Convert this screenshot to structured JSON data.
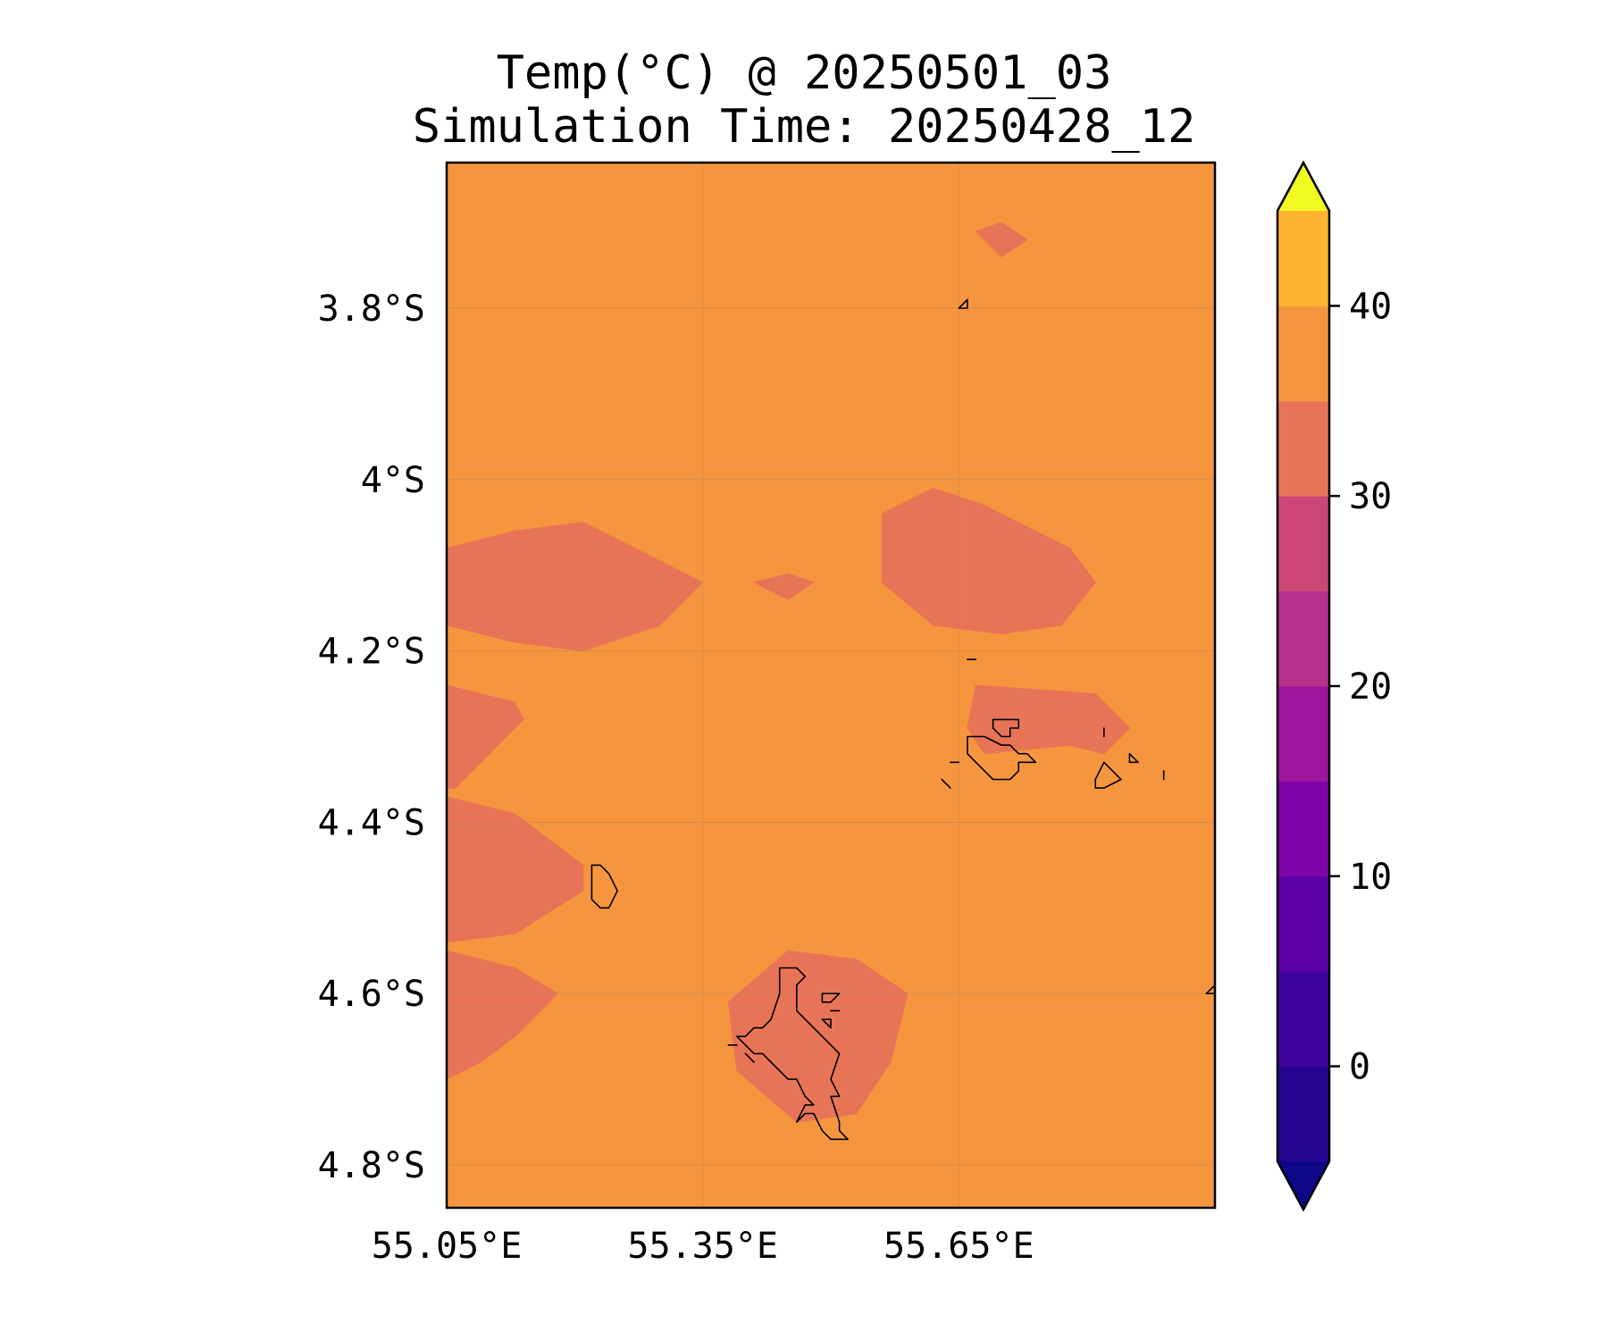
{
  "title": "Temp(°C) @ 20250501_03",
  "subtitle": "Simulation Time: 20250428_12",
  "map": {
    "variable": "Temp(°C)",
    "extent": {
      "lon_min": 55.05,
      "lon_max": 55.95,
      "lat_min": -4.85,
      "lat_max": -3.63
    },
    "background_color": "#f5963f",
    "x_ticks": [
      {
        "value": 55.05,
        "label": "55.05°E"
      },
      {
        "value": 55.35,
        "label": "55.35°E"
      },
      {
        "value": 55.65,
        "label": "55.65°E"
      }
    ],
    "y_ticks": [
      {
        "value": -3.8,
        "label": "3.8°S"
      },
      {
        "value": -4.0,
        "label": "4°S"
      },
      {
        "value": -4.2,
        "label": "4.2°S"
      },
      {
        "value": -4.4,
        "label": "4.4°S"
      },
      {
        "value": -4.6,
        "label": "4.6°S"
      },
      {
        "value": -4.8,
        "label": "4.8°S"
      }
    ],
    "gridlines": true,
    "contour_regions": [
      {
        "name": "25-30 band north",
        "band": [
          25,
          30
        ],
        "color": "#e87458",
        "lonlat": [
          [
            55.67,
            -3.71
          ],
          [
            55.7,
            -3.7
          ],
          [
            55.73,
            -3.72
          ],
          [
            55.7,
            -3.74
          ]
        ]
      },
      {
        "name": "25-30 band west-central",
        "band": [
          25,
          30
        ],
        "color": "#e87458",
        "lonlat": [
          [
            55.05,
            -4.08
          ],
          [
            55.13,
            -4.06
          ],
          [
            55.21,
            -4.05
          ],
          [
            55.35,
            -4.12
          ],
          [
            55.3,
            -4.17
          ],
          [
            55.21,
            -4.2
          ],
          [
            55.13,
            -4.19
          ],
          [
            55.05,
            -4.17
          ]
        ]
      },
      {
        "name": "25-30 band small",
        "band": [
          25,
          30
        ],
        "color": "#e87458",
        "lonlat": [
          [
            55.41,
            -4.12
          ],
          [
            55.45,
            -4.11
          ],
          [
            55.48,
            -4.12
          ],
          [
            55.45,
            -4.14
          ]
        ]
      },
      {
        "name": "25-30 band east-central",
        "band": [
          25,
          30
        ],
        "color": "#e87458",
        "lonlat": [
          [
            55.56,
            -4.04
          ],
          [
            55.62,
            -4.01
          ],
          [
            55.68,
            -4.03
          ],
          [
            55.78,
            -4.08
          ],
          [
            55.81,
            -4.12
          ],
          [
            55.77,
            -4.17
          ],
          [
            55.7,
            -4.18
          ],
          [
            55.62,
            -4.17
          ],
          [
            55.56,
            -4.12
          ]
        ]
      },
      {
        "name": "25-30 band mahe-northeast",
        "band": [
          25,
          30
        ],
        "color": "#e87458",
        "lonlat": [
          [
            55.67,
            -4.24
          ],
          [
            55.81,
            -4.25
          ],
          [
            55.85,
            -4.29
          ],
          [
            55.82,
            -4.32
          ],
          [
            55.78,
            -4.31
          ],
          [
            55.68,
            -4.32
          ],
          [
            55.66,
            -4.29
          ]
        ]
      },
      {
        "name": "25-30 band west-a",
        "band": [
          25,
          30
        ],
        "color": "#e87458",
        "lonlat": [
          [
            55.05,
            -4.24
          ],
          [
            55.13,
            -4.26
          ],
          [
            55.14,
            -4.28
          ],
          [
            55.06,
            -4.36
          ],
          [
            55.05,
            -4.36
          ]
        ]
      },
      {
        "name": "25-30 band west-b",
        "band": [
          25,
          30
        ],
        "color": "#e87458",
        "lonlat": [
          [
            55.05,
            -4.37
          ],
          [
            55.13,
            -4.39
          ],
          [
            55.21,
            -4.45
          ],
          [
            55.21,
            -4.48
          ],
          [
            55.13,
            -4.53
          ],
          [
            55.05,
            -4.54
          ]
        ]
      },
      {
        "name": "25-30 band west-c",
        "band": [
          25,
          30
        ],
        "color": "#e87458",
        "lonlat": [
          [
            55.05,
            -4.55
          ],
          [
            55.13,
            -4.57
          ],
          [
            55.18,
            -4.6
          ],
          [
            55.13,
            -4.65
          ],
          [
            55.09,
            -4.68
          ],
          [
            55.05,
            -4.7
          ]
        ]
      },
      {
        "name": "25-30 band south",
        "band": [
          25,
          30
        ],
        "color": "#e87458",
        "lonlat": [
          [
            55.38,
            -4.61
          ],
          [
            55.45,
            -4.55
          ],
          [
            55.53,
            -4.56
          ],
          [
            55.59,
            -4.6
          ],
          [
            55.57,
            -4.68
          ],
          [
            55.53,
            -4.74
          ],
          [
            55.46,
            -4.75
          ],
          [
            55.39,
            -4.69
          ]
        ]
      }
    ],
    "coastlines": [
      {
        "name": "island north",
        "lonlat": [
          [
            55.65,
            -3.8
          ],
          [
            55.66,
            -3.79
          ],
          [
            55.66,
            -3.8
          ],
          [
            55.65,
            -3.8
          ]
        ]
      },
      {
        "name": "islet",
        "lonlat": [
          [
            55.66,
            -4.21
          ],
          [
            55.67,
            -4.21
          ],
          [
            55.66,
            -4.21
          ],
          [
            55.66,
            -4.21
          ]
        ]
      },
      {
        "name": "praslin",
        "lonlat": [
          [
            55.66,
            -4.3
          ],
          [
            55.68,
            -4.3
          ],
          [
            55.7,
            -4.31
          ],
          [
            55.71,
            -4.31
          ],
          [
            55.72,
            -4.32
          ],
          [
            55.73,
            -4.32
          ],
          [
            55.74,
            -4.33
          ],
          [
            55.72,
            -4.33
          ],
          [
            55.72,
            -4.34
          ],
          [
            55.71,
            -4.35
          ],
          [
            55.69,
            -4.35
          ],
          [
            55.68,
            -4.34
          ],
          [
            55.67,
            -4.33
          ],
          [
            55.66,
            -4.32
          ]
        ]
      },
      {
        "name": "curieuse",
        "lonlat": [
          [
            55.69,
            -4.28
          ],
          [
            55.72,
            -4.28
          ],
          [
            55.72,
            -4.29
          ],
          [
            55.71,
            -4.29
          ],
          [
            55.71,
            -4.3
          ],
          [
            55.7,
            -4.3
          ],
          [
            55.69,
            -4.29
          ],
          [
            55.69,
            -4.28
          ]
        ]
      },
      {
        "name": "la digue",
        "lonlat": [
          [
            55.82,
            -4.33
          ],
          [
            55.84,
            -4.35
          ],
          [
            55.82,
            -4.36
          ],
          [
            55.81,
            -4.36
          ],
          [
            55.81,
            -4.35
          ],
          [
            55.82,
            -4.33
          ]
        ]
      },
      {
        "name": "felicite",
        "lonlat": [
          [
            55.85,
            -4.32
          ],
          [
            55.86,
            -4.33
          ],
          [
            55.85,
            -4.33
          ],
          [
            55.85,
            -4.32
          ]
        ]
      },
      {
        "name": "islet east",
        "lonlat": [
          [
            55.82,
            -4.29
          ],
          [
            55.82,
            -4.3
          ],
          [
            55.82,
            -4.3
          ]
        ]
      },
      {
        "name": "marianne",
        "lonlat": [
          [
            55.89,
            -4.34
          ],
          [
            55.89,
            -4.35
          ],
          [
            55.89,
            -4.34
          ]
        ]
      },
      {
        "name": "islet west",
        "lonlat": [
          [
            55.64,
            -4.33
          ],
          [
            55.65,
            -4.33
          ],
          [
            55.64,
            -4.33
          ]
        ]
      },
      {
        "name": "islet sw",
        "lonlat": [
          [
            55.63,
            -4.35
          ],
          [
            55.64,
            -4.36
          ],
          [
            55.63,
            -4.35
          ]
        ]
      },
      {
        "name": "silhouette",
        "lonlat": [
          [
            55.22,
            -4.45
          ],
          [
            55.23,
            -4.45
          ],
          [
            55.24,
            -4.46
          ],
          [
            55.25,
            -4.48
          ],
          [
            55.24,
            -4.5
          ],
          [
            55.23,
            -4.5
          ],
          [
            55.22,
            -4.49
          ],
          [
            55.22,
            -4.45
          ]
        ]
      },
      {
        "name": "mahe",
        "lonlat": [
          [
            55.44,
            -4.57
          ],
          [
            55.46,
            -4.57
          ],
          [
            55.47,
            -4.58
          ],
          [
            55.46,
            -4.59
          ],
          [
            55.46,
            -4.62
          ],
          [
            55.47,
            -4.63
          ],
          [
            55.49,
            -4.65
          ],
          [
            55.51,
            -4.67
          ],
          [
            55.5,
            -4.7
          ],
          [
            55.51,
            -4.72
          ],
          [
            55.5,
            -4.72
          ],
          [
            55.51,
            -4.75
          ],
          [
            55.51,
            -4.76
          ],
          [
            55.52,
            -4.77
          ],
          [
            55.5,
            -4.77
          ],
          [
            55.49,
            -4.76
          ],
          [
            55.48,
            -4.74
          ],
          [
            55.47,
            -4.74
          ],
          [
            55.46,
            -4.75
          ],
          [
            55.47,
            -4.73
          ],
          [
            55.48,
            -4.73
          ],
          [
            55.47,
            -4.72
          ],
          [
            55.46,
            -4.7
          ],
          [
            55.45,
            -4.7
          ],
          [
            55.43,
            -4.68
          ],
          [
            55.42,
            -4.67
          ],
          [
            55.41,
            -4.67
          ],
          [
            55.4,
            -4.66
          ],
          [
            55.39,
            -4.65
          ],
          [
            55.4,
            -4.65
          ],
          [
            55.41,
            -4.64
          ],
          [
            55.42,
            -4.64
          ],
          [
            55.43,
            -4.63
          ],
          [
            55.44,
            -4.6
          ],
          [
            55.44,
            -4.58
          ],
          [
            55.44,
            -4.57
          ]
        ]
      },
      {
        "name": "ste anne",
        "lonlat": [
          [
            55.49,
            -4.6
          ],
          [
            55.51,
            -4.6
          ],
          [
            55.5,
            -4.61
          ],
          [
            55.49,
            -4.61
          ],
          [
            55.49,
            -4.6
          ]
        ]
      },
      {
        "name": "cerf",
        "lonlat": [
          [
            55.49,
            -4.63
          ],
          [
            55.5,
            -4.63
          ],
          [
            55.5,
            -4.64
          ],
          [
            55.49,
            -4.63
          ]
        ]
      },
      {
        "name": "round",
        "lonlat": [
          [
            55.5,
            -4.62
          ],
          [
            55.51,
            -4.62
          ],
          [
            55.5,
            -4.62
          ]
        ]
      },
      {
        "name": "therese",
        "lonlat": [
          [
            55.4,
            -4.67
          ],
          [
            55.41,
            -4.68
          ],
          [
            55.4,
            -4.67
          ]
        ]
      },
      {
        "name": "conception",
        "lonlat": [
          [
            55.38,
            -4.66
          ],
          [
            55.39,
            -4.66
          ],
          [
            55.38,
            -4.66
          ]
        ]
      },
      {
        "name": "islet east edge",
        "lonlat": [
          [
            55.95,
            -4.59
          ],
          [
            55.94,
            -4.6
          ],
          [
            55.95,
            -4.6
          ]
        ]
      }
    ]
  },
  "colorbar": {
    "levels": [
      -5,
      0,
      5,
      10,
      15,
      20,
      25,
      30,
      35,
      40,
      45
    ],
    "colors": [
      "#24068f",
      "#3f049b",
      "#5c01a6",
      "#7e03a8",
      "#9c179e",
      "#b6308b",
      "#cc4778",
      "#e87458",
      "#f5963f",
      "#fdb42f",
      "#f0e529"
    ],
    "under_color": "#0d0887",
    "over_color": "#f0f921",
    "extend": "both",
    "ticks": [
      {
        "value": 0,
        "label": "0"
      },
      {
        "value": 10,
        "label": "10"
      },
      {
        "value": 20,
        "label": "20"
      },
      {
        "value": 30,
        "label": "30"
      },
      {
        "value": 40,
        "label": "40"
      }
    ]
  }
}
